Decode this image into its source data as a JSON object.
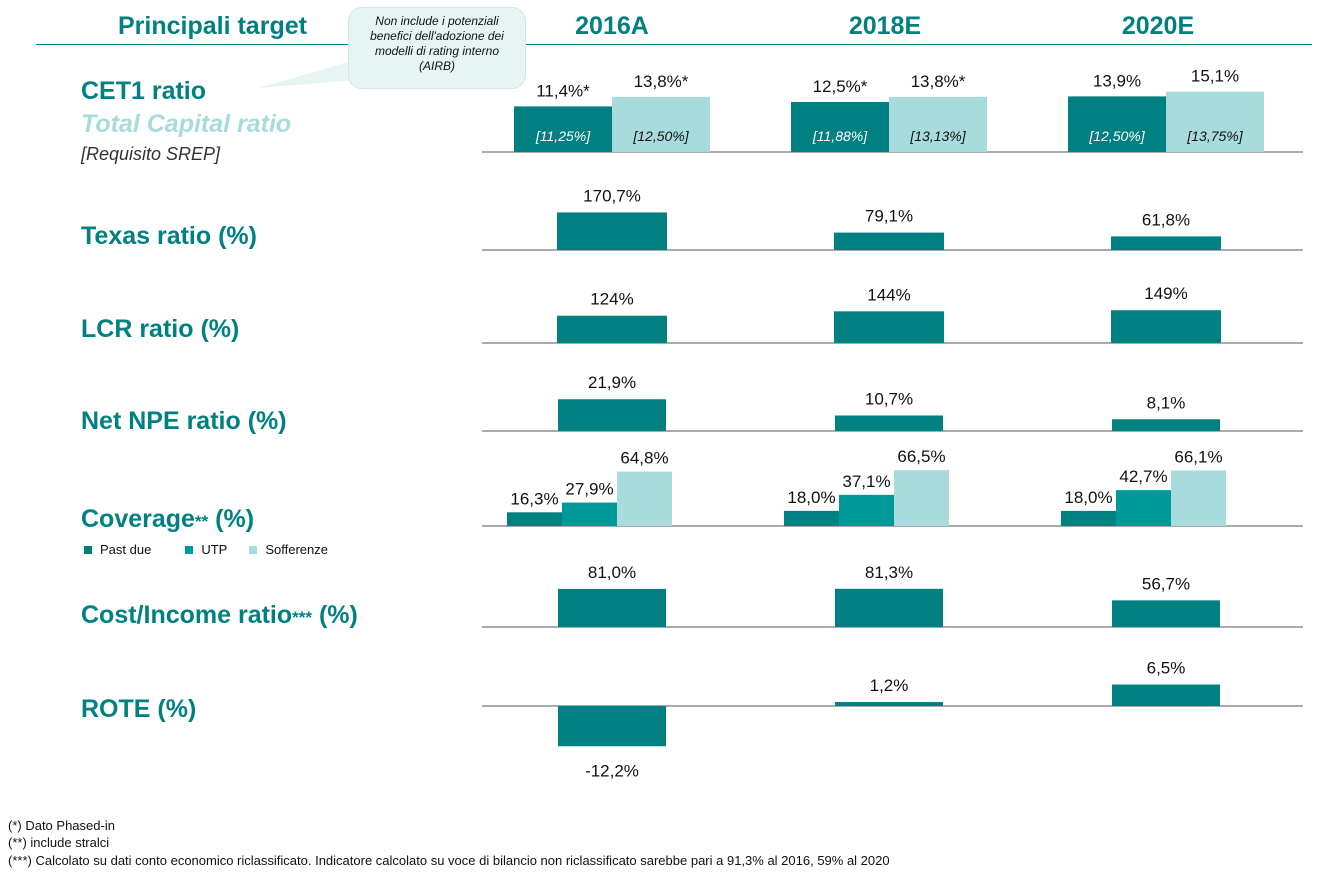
{
  "header": {
    "title": "Principali target"
  },
  "columns": [
    "2016A",
    "2018E",
    "2020E"
  ],
  "note_bubble": "Non include i potenziali benefici dell'adozione dei modelli di rating interno (AIRB)",
  "rows": {
    "cet1": {
      "label": "CET1 ratio",
      "sublabel": "Total Capital ratio",
      "sublabel2": "[Requisito SREP]"
    },
    "texas": {
      "label": "Texas ratio (%)"
    },
    "lcr": {
      "label": "LCR ratio (%)"
    },
    "npe": {
      "label": "Net NPE ratio (%)"
    },
    "coverage": {
      "label_main": "Coverage",
      "label_mark": "**",
      "label_tail": " (%)"
    },
    "cost": {
      "label_main": "Cost/Income ratio",
      "label_mark": "***",
      "label_tail": " (%)"
    },
    "rote": {
      "label": "ROTE (%)"
    }
  },
  "legend": {
    "items": [
      "Past due",
      "UTP",
      "Sofferenze"
    ]
  },
  "footnotes": [
    "(*) Dato Phased-in",
    "(**) include stralci",
    "(***) Calcolato su dati conto economico riclassificato. Indicatore calcolato su voce di bilancio non riclassificato sarebbe pari a 91,3% al 2016, 59% al 2020"
  ],
  "colors": {
    "dark": "#008080",
    "mid": "#009999",
    "light": "#a8dcdc",
    "accent": "#008080"
  },
  "chart_data": [
    {
      "type": "bar",
      "name": "CET1 ratio / Total Capital ratio",
      "categories": [
        "2016A",
        "2018E",
        "2020E"
      ],
      "series": [
        {
          "name": "CET1 ratio",
          "values": [
            11.4,
            12.5,
            13.9
          ],
          "labels": [
            "11,4%*",
            "12,5%*",
            "13,9%"
          ],
          "requirement": [
            "[11,25%]",
            "[11,88%]",
            "[12,50%]"
          ]
        },
        {
          "name": "Total Capital ratio",
          "values": [
            13.8,
            13.8,
            15.1
          ],
          "labels": [
            "13,8%*",
            "13,8%*",
            "15,1%"
          ],
          "requirement": [
            "[12,50%]",
            "[13,13%]",
            "[13,75%]"
          ]
        }
      ]
    },
    {
      "type": "bar",
      "name": "Texas ratio (%)",
      "categories": [
        "2016A",
        "2018E",
        "2020E"
      ],
      "values": [
        170.7,
        79.1,
        61.8
      ],
      "labels": [
        "170,7%",
        "79,1%",
        "61,8%"
      ]
    },
    {
      "type": "bar",
      "name": "LCR ratio (%)",
      "categories": [
        "2016A",
        "2018E",
        "2020E"
      ],
      "values": [
        124,
        144,
        149
      ],
      "labels": [
        "124%",
        "144%",
        "149%"
      ]
    },
    {
      "type": "bar",
      "name": "Net NPE ratio (%)",
      "categories": [
        "2016A",
        "2018E",
        "2020E"
      ],
      "values": [
        21.9,
        10.7,
        8.1
      ],
      "labels": [
        "21,9%",
        "10,7%",
        "8,1%"
      ]
    },
    {
      "type": "bar",
      "name": "Coverage (%)",
      "categories": [
        "2016A",
        "2018E",
        "2020E"
      ],
      "series": [
        {
          "name": "Past due",
          "values": [
            16.3,
            18.0,
            18.0
          ],
          "labels": [
            "16,3%",
            "18,0%",
            "18,0%"
          ]
        },
        {
          "name": "UTP",
          "values": [
            27.9,
            37.1,
            42.7
          ],
          "labels": [
            "27,9%",
            "37,1%",
            "42,7%"
          ]
        },
        {
          "name": "Sofferenze",
          "values": [
            64.8,
            66.5,
            66.1
          ],
          "labels": [
            "64,8%",
            "66,5%",
            "66,1%"
          ]
        }
      ]
    },
    {
      "type": "bar",
      "name": "Cost/Income ratio (%)",
      "categories": [
        "2016A",
        "2018E",
        "2020E"
      ],
      "values": [
        81.0,
        81.3,
        56.7
      ],
      "labels": [
        "81,0%",
        "81,3%",
        "56,7%"
      ]
    },
    {
      "type": "bar",
      "name": "ROTE (%)",
      "categories": [
        "2016A",
        "2018E",
        "2020E"
      ],
      "values": [
        -12.2,
        1.2,
        6.5
      ],
      "labels": [
        "-12,2%",
        "1,2%",
        "6,5%"
      ]
    }
  ]
}
